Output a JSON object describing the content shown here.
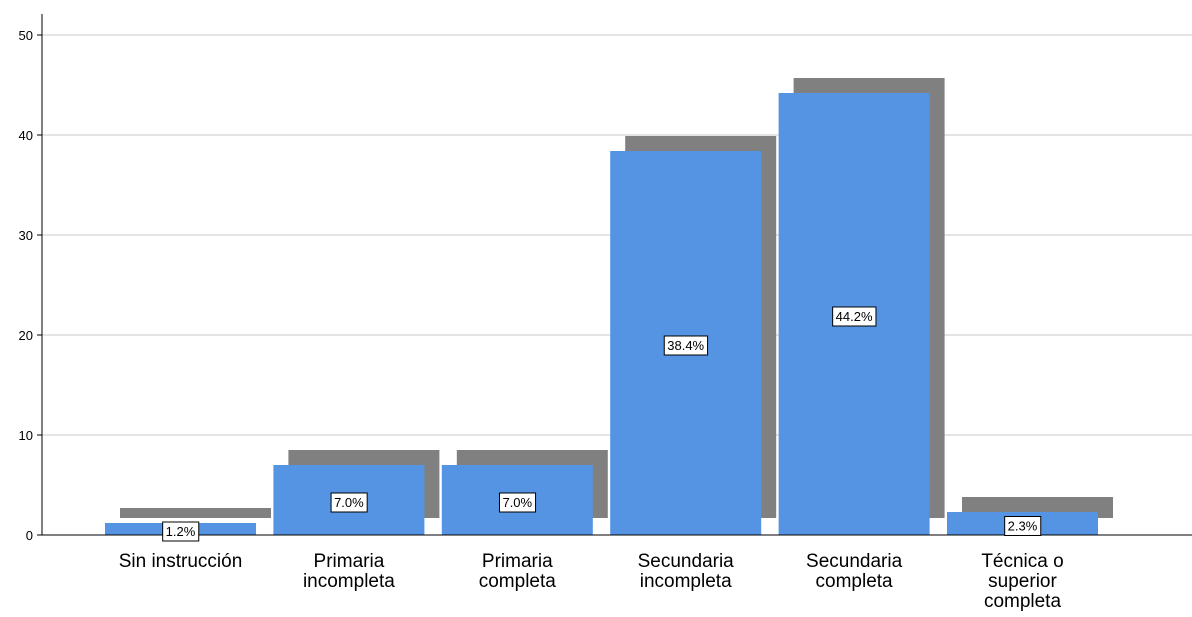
{
  "chart_data": {
    "type": "bar",
    "style": "3d-shadow",
    "categories": [
      [
        "Sin instrucción"
      ],
      [
        "Primaria",
        "incompleta"
      ],
      [
        "Primaria",
        "completa"
      ],
      [
        "Secundaria",
        "incompleta"
      ],
      [
        "Secundaria",
        "completa"
      ],
      [
        "Técnica o",
        "superior",
        "completa"
      ]
    ],
    "values": [
      1.2,
      7.0,
      7.0,
      38.4,
      44.2,
      2.3
    ],
    "data_labels": [
      "1.2%",
      "7.0%",
      "7.0%",
      "38.4%",
      "44.2%",
      "2.3%"
    ],
    "y_ticks": [
      "0",
      "10",
      "20",
      "30",
      "40",
      "50"
    ],
    "ylim": [
      0,
      50
    ],
    "grid": true,
    "title": "",
    "xlabel": "",
    "ylabel": "",
    "colors": {
      "bar": "#5594e2",
      "shadow": "#808080",
      "grid": "#c8c8c8",
      "axis": "#000000",
      "label_box_border": "#000000",
      "label_box_fill": "#ffffff"
    }
  }
}
